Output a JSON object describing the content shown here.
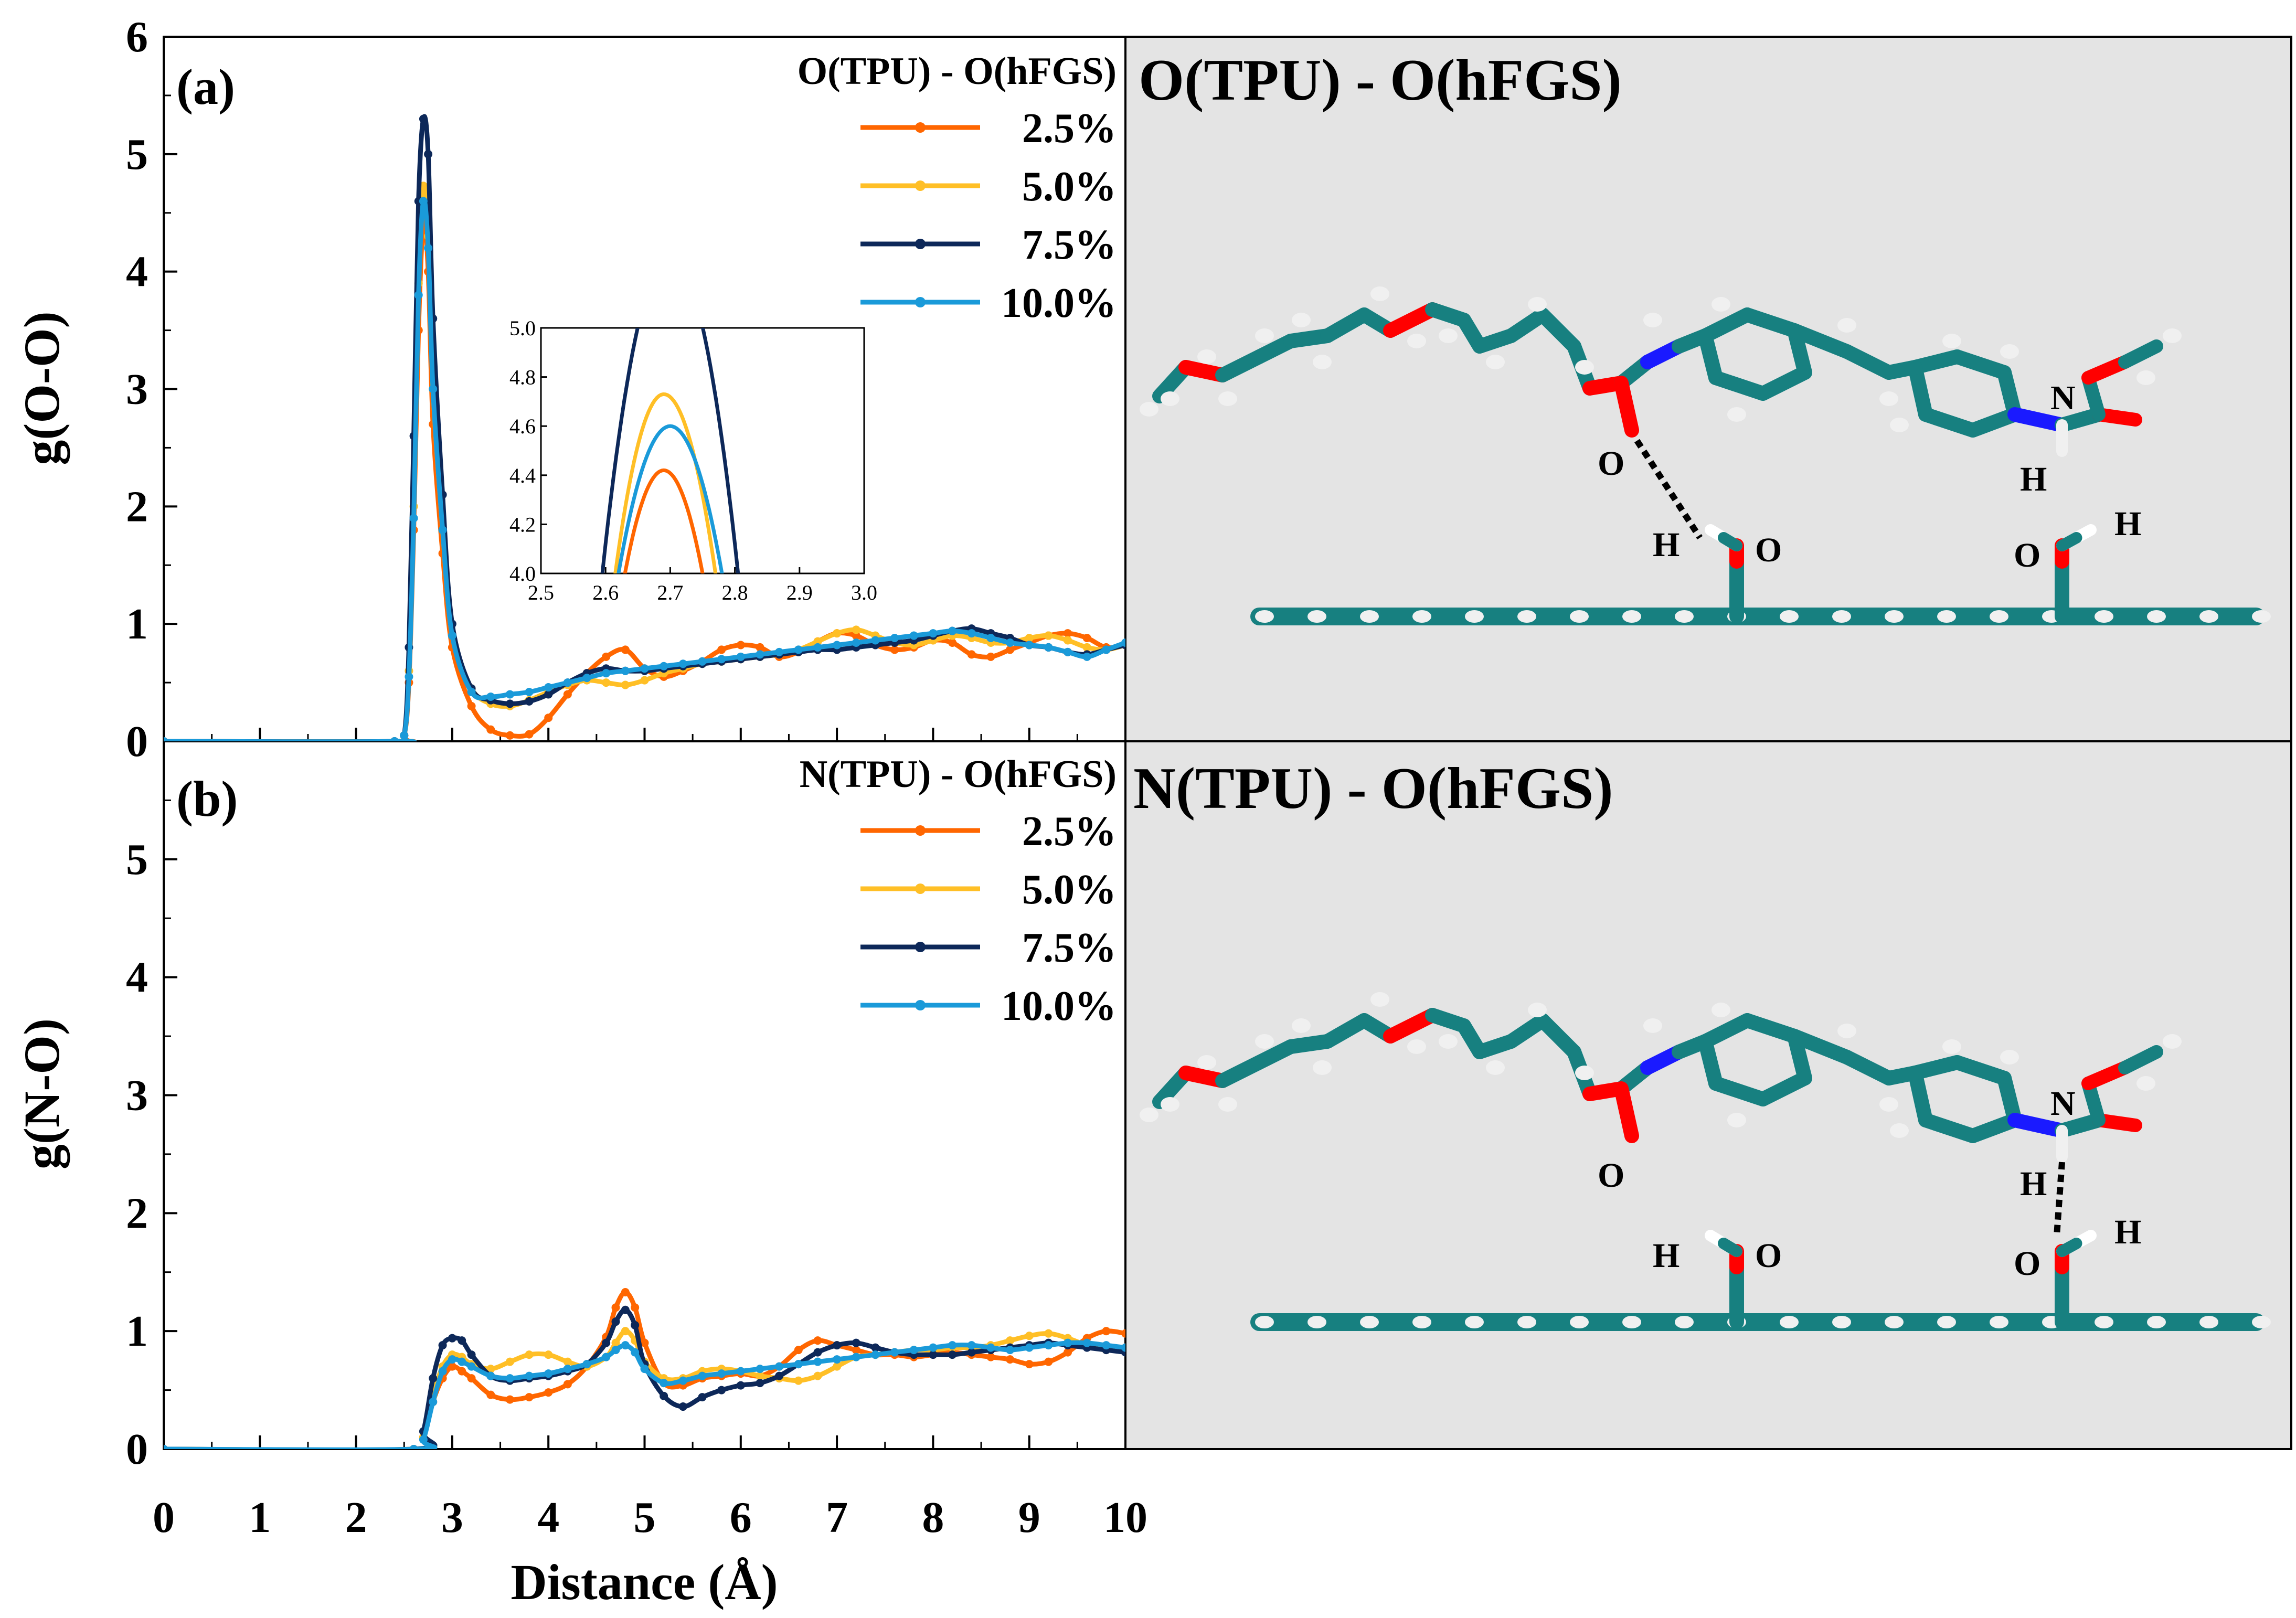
{
  "colors": {
    "s25": "#ff6600",
    "s50": "#ffbf26",
    "s75": "#0d2859",
    "s100": "#1a9ad9",
    "panel_bg": "#e4e4e4",
    "bond": "#178080",
    "oxygen": "#ff0000",
    "nitrogen": "#1a1aff",
    "hydrogen": "#f0f0f0"
  },
  "xaxis": {
    "label": "Distance (Å)",
    "ticks": [
      "0",
      "1",
      "2",
      "3",
      "4",
      "5",
      "6",
      "7",
      "8",
      "9",
      "10"
    ]
  },
  "panel_a": {
    "label": "(a)",
    "ylabel": "g(O-O)",
    "yticks": [
      "0",
      "1",
      "2",
      "3",
      "4",
      "5",
      "6"
    ],
    "legend_title": "O(TPU) - O(hFGS)",
    "molecule_title": "O(TPU) - O(hFGS)",
    "inset": {
      "xticks": [
        "2.5",
        "2.6",
        "2.7",
        "2.8",
        "2.9",
        "3.0"
      ],
      "yticks": [
        "4.0",
        "4.2",
        "4.4",
        "4.6",
        "4.8",
        "5.0"
      ]
    }
  },
  "panel_b": {
    "label": "(b)",
    "ylabel": "g(N-O)",
    "yticks": [
      "0",
      "1",
      "2",
      "3",
      "4",
      "5"
    ],
    "legend_title": "N(TPU) - O(hFGS)",
    "molecule_title": "N(TPU) - O(hFGS)"
  },
  "atom_labels": {
    "N": "N",
    "H": "H",
    "O": "O"
  },
  "chart_data": [
    {
      "type": "line",
      "title": "(a) O(TPU) - O(hFGS)",
      "xlabel": "Distance (Å)",
      "ylabel": "g(O-O)",
      "xlim": [
        0,
        10
      ],
      "ylim": [
        0,
        6
      ],
      "series": [
        {
          "name": "2.5%",
          "color_key": "s25",
          "x": [
            0,
            2.4,
            2.5,
            2.55,
            2.6,
            2.65,
            2.7,
            2.75,
            2.8,
            2.9,
            3.0,
            3.2,
            3.4,
            3.6,
            3.8,
            4.0,
            4.2,
            4.4,
            4.6,
            4.8,
            5.0,
            5.2,
            5.4,
            5.6,
            5.8,
            6.0,
            6.2,
            6.4,
            6.6,
            6.8,
            7.0,
            7.2,
            7.4,
            7.6,
            7.8,
            8.0,
            8.2,
            8.4,
            8.6,
            8.8,
            9.0,
            9.2,
            9.4,
            9.6,
            9.8,
            10.0
          ],
          "values": [
            0,
            0,
            0.05,
            0.5,
            1.8,
            3.5,
            4.42,
            4.0,
            2.7,
            1.6,
            0.8,
            0.3,
            0.1,
            0.05,
            0.06,
            0.2,
            0.4,
            0.58,
            0.72,
            0.78,
            0.62,
            0.55,
            0.6,
            0.68,
            0.78,
            0.82,
            0.8,
            0.72,
            0.76,
            0.85,
            0.92,
            0.9,
            0.82,
            0.78,
            0.8,
            0.86,
            0.84,
            0.74,
            0.72,
            0.78,
            0.84,
            0.9,
            0.92,
            0.88,
            0.8,
            0.82
          ]
        },
        {
          "name": "5.0%",
          "color_key": "s50",
          "x": [
            0,
            2.4,
            2.5,
            2.55,
            2.6,
            2.65,
            2.7,
            2.75,
            2.8,
            2.9,
            3.0,
            3.2,
            3.4,
            3.6,
            3.8,
            4.0,
            4.2,
            4.4,
            4.6,
            4.8,
            5.0,
            5.2,
            5.4,
            5.6,
            5.8,
            6.0,
            6.2,
            6.4,
            6.6,
            6.8,
            7.0,
            7.2,
            7.4,
            7.6,
            7.8,
            8.0,
            8.2,
            8.4,
            8.6,
            8.8,
            9.0,
            9.2,
            9.4,
            9.6,
            9.8,
            10.0
          ],
          "values": [
            0,
            0,
            0.05,
            0.6,
            2.0,
            3.9,
            4.73,
            4.3,
            3.0,
            1.8,
            0.9,
            0.45,
            0.32,
            0.3,
            0.35,
            0.42,
            0.48,
            0.52,
            0.5,
            0.48,
            0.52,
            0.58,
            0.62,
            0.66,
            0.68,
            0.7,
            0.72,
            0.74,
            0.78,
            0.85,
            0.92,
            0.95,
            0.9,
            0.84,
            0.82,
            0.86,
            0.9,
            0.88,
            0.84,
            0.84,
            0.88,
            0.9,
            0.86,
            0.8,
            0.78,
            0.82
          ]
        },
        {
          "name": "7.5%",
          "color_key": "s75",
          "x": [
            0,
            2.4,
            2.5,
            2.55,
            2.6,
            2.65,
            2.7,
            2.75,
            2.8,
            2.9,
            3.0,
            3.2,
            3.4,
            3.6,
            3.8,
            4.0,
            4.2,
            4.4,
            4.6,
            4.8,
            5.0,
            5.2,
            5.4,
            5.6,
            5.8,
            6.0,
            6.2,
            6.4,
            6.6,
            6.8,
            7.0,
            7.2,
            7.4,
            7.6,
            7.8,
            8.0,
            8.2,
            8.4,
            8.6,
            8.8,
            9.0,
            9.2,
            9.4,
            9.6,
            9.8,
            10.0
          ],
          "values": [
            0,
            0,
            0.05,
            0.8,
            2.6,
            4.6,
            5.3,
            5.0,
            3.6,
            2.1,
            1.0,
            0.45,
            0.35,
            0.32,
            0.34,
            0.4,
            0.5,
            0.58,
            0.62,
            0.6,
            0.6,
            0.62,
            0.64,
            0.66,
            0.68,
            0.7,
            0.72,
            0.74,
            0.76,
            0.78,
            0.78,
            0.8,
            0.82,
            0.84,
            0.86,
            0.9,
            0.94,
            0.96,
            0.92,
            0.88,
            0.82,
            0.8,
            0.76,
            0.74,
            0.78,
            0.82
          ]
        },
        {
          "name": "10.0%",
          "color_key": "s100",
          "x": [
            0,
            2.4,
            2.5,
            2.55,
            2.6,
            2.65,
            2.7,
            2.75,
            2.8,
            2.9,
            3.0,
            3.2,
            3.4,
            3.6,
            3.8,
            4.0,
            4.2,
            4.4,
            4.6,
            4.8,
            5.0,
            5.2,
            5.4,
            5.6,
            5.8,
            6.0,
            6.2,
            6.4,
            6.6,
            6.8,
            7.0,
            7.2,
            7.4,
            7.6,
            7.8,
            8.0,
            8.2,
            8.4,
            8.6,
            8.8,
            9.0,
            9.2,
            9.4,
            9.6,
            9.8,
            10.0
          ],
          "values": [
            0,
            0,
            0.05,
            0.55,
            1.9,
            3.8,
            4.6,
            4.2,
            3.0,
            1.8,
            0.9,
            0.42,
            0.38,
            0.4,
            0.42,
            0.46,
            0.5,
            0.54,
            0.58,
            0.6,
            0.62,
            0.64,
            0.66,
            0.68,
            0.7,
            0.72,
            0.74,
            0.76,
            0.78,
            0.8,
            0.82,
            0.84,
            0.86,
            0.88,
            0.9,
            0.92,
            0.94,
            0.92,
            0.88,
            0.84,
            0.82,
            0.8,
            0.76,
            0.72,
            0.78,
            0.84
          ]
        }
      ]
    },
    {
      "type": "line",
      "title": "(a) inset",
      "xlim": [
        2.5,
        3.0
      ],
      "ylim": [
        4.0,
        5.0
      ],
      "series": [
        {
          "name": "2.5%",
          "color_key": "s25",
          "peak_x": 2.69,
          "peak_y": 4.42,
          "zero_x": [
            2.63,
            2.75
          ]
        },
        {
          "name": "5.0%",
          "color_key": "s50",
          "peak_x": 2.69,
          "peak_y": 4.73,
          "zero_x": [
            2.615,
            2.77
          ]
        },
        {
          "name": "7.5%",
          "color_key": "s75",
          "peak_x": 2.7,
          "peak_y": 5.3,
          "zero_x": [
            2.595,
            2.805
          ]
        },
        {
          "name": "10.0%",
          "color_key": "s100",
          "peak_x": 2.7,
          "peak_y": 4.6,
          "zero_x": [
            2.62,
            2.78
          ]
        }
      ]
    },
    {
      "type": "line",
      "title": "(b) N(TPU) - O(hFGS)",
      "xlabel": "Distance (Å)",
      "ylabel": "g(N-O)",
      "xlim": [
        0,
        10
      ],
      "ylim": [
        0,
        6
      ],
      "series": [
        {
          "name": "2.5%",
          "color_key": "s25",
          "x": [
            0,
            2.6,
            2.7,
            2.8,
            2.9,
            3.0,
            3.1,
            3.2,
            3.4,
            3.6,
            3.8,
            4.0,
            4.2,
            4.4,
            4.6,
            4.7,
            4.8,
            4.9,
            5.0,
            5.2,
            5.4,
            5.6,
            5.8,
            6.0,
            6.2,
            6.4,
            6.6,
            6.8,
            7.0,
            7.2,
            7.4,
            7.6,
            7.8,
            8.0,
            8.2,
            8.4,
            8.6,
            8.8,
            9.0,
            9.2,
            9.4,
            9.6,
            9.8,
            10.0
          ],
          "values": [
            0,
            0,
            0.1,
            0.4,
            0.6,
            0.7,
            0.66,
            0.6,
            0.46,
            0.42,
            0.44,
            0.48,
            0.55,
            0.7,
            0.95,
            1.2,
            1.33,
            1.2,
            0.9,
            0.56,
            0.54,
            0.6,
            0.62,
            0.64,
            0.62,
            0.7,
            0.84,
            0.92,
            0.88,
            0.84,
            0.8,
            0.8,
            0.78,
            0.8,
            0.82,
            0.8,
            0.78,
            0.76,
            0.72,
            0.74,
            0.82,
            0.94,
            1.0,
            0.98
          ]
        },
        {
          "name": "5.0%",
          "color_key": "s50",
          "x": [
            0,
            2.6,
            2.7,
            2.8,
            2.9,
            3.0,
            3.1,
            3.2,
            3.4,
            3.6,
            3.8,
            4.0,
            4.2,
            4.4,
            4.6,
            4.7,
            4.8,
            4.9,
            5.0,
            5.2,
            5.4,
            5.6,
            5.8,
            6.0,
            6.2,
            6.4,
            6.6,
            6.8,
            7.0,
            7.2,
            7.4,
            7.6,
            7.8,
            8.0,
            8.2,
            8.4,
            8.6,
            8.8,
            9.0,
            9.2,
            9.4,
            9.6,
            9.8,
            10.0
          ],
          "values": [
            0,
            0,
            0.1,
            0.45,
            0.7,
            0.8,
            0.78,
            0.72,
            0.68,
            0.74,
            0.8,
            0.8,
            0.74,
            0.7,
            0.78,
            0.9,
            1.0,
            0.92,
            0.74,
            0.6,
            0.6,
            0.66,
            0.68,
            0.66,
            0.62,
            0.6,
            0.58,
            0.62,
            0.7,
            0.78,
            0.8,
            0.82,
            0.84,
            0.84,
            0.86,
            0.86,
            0.88,
            0.92,
            0.96,
            0.98,
            0.94,
            0.88,
            0.84,
            0.86
          ]
        },
        {
          "name": "7.5%",
          "color_key": "s75",
          "x": [
            0,
            2.6,
            2.7,
            2.8,
            2.9,
            3.0,
            3.1,
            3.2,
            3.4,
            3.6,
            3.8,
            4.0,
            4.2,
            4.4,
            4.6,
            4.7,
            4.8,
            4.9,
            5.0,
            5.2,
            5.4,
            5.6,
            5.8,
            6.0,
            6.2,
            6.4,
            6.6,
            6.8,
            7.0,
            7.2,
            7.4,
            7.6,
            7.8,
            8.0,
            8.2,
            8.4,
            8.6,
            8.8,
            9.0,
            9.2,
            9.4,
            9.6,
            9.8,
            10.0
          ],
          "values": [
            0,
            0,
            0.15,
            0.6,
            0.88,
            0.94,
            0.92,
            0.8,
            0.62,
            0.58,
            0.6,
            0.62,
            0.66,
            0.72,
            0.9,
            1.08,
            1.18,
            1.05,
            0.72,
            0.45,
            0.36,
            0.44,
            0.5,
            0.54,
            0.56,
            0.62,
            0.72,
            0.82,
            0.88,
            0.9,
            0.86,
            0.82,
            0.8,
            0.8,
            0.8,
            0.82,
            0.84,
            0.86,
            0.88,
            0.9,
            0.88,
            0.86,
            0.84,
            0.82
          ]
        },
        {
          "name": "10.0%",
          "color_key": "s100",
          "x": [
            0,
            2.6,
            2.7,
            2.8,
            2.9,
            3.0,
            3.1,
            3.2,
            3.4,
            3.6,
            3.8,
            4.0,
            4.2,
            4.4,
            4.6,
            4.7,
            4.8,
            4.9,
            5.0,
            5.2,
            5.4,
            5.6,
            5.8,
            6.0,
            6.2,
            6.4,
            6.6,
            6.8,
            7.0,
            7.2,
            7.4,
            7.6,
            7.8,
            8.0,
            8.2,
            8.4,
            8.6,
            8.8,
            9.0,
            9.2,
            9.4,
            9.6,
            9.8,
            10.0
          ],
          "values": [
            0,
            0,
            0.08,
            0.4,
            0.66,
            0.76,
            0.74,
            0.7,
            0.62,
            0.6,
            0.62,
            0.64,
            0.68,
            0.72,
            0.78,
            0.84,
            0.88,
            0.82,
            0.68,
            0.56,
            0.58,
            0.62,
            0.64,
            0.66,
            0.68,
            0.7,
            0.72,
            0.74,
            0.76,
            0.78,
            0.8,
            0.82,
            0.84,
            0.86,
            0.88,
            0.88,
            0.86,
            0.84,
            0.86,
            0.88,
            0.9,
            0.9,
            0.88,
            0.86
          ]
        }
      ]
    }
  ]
}
